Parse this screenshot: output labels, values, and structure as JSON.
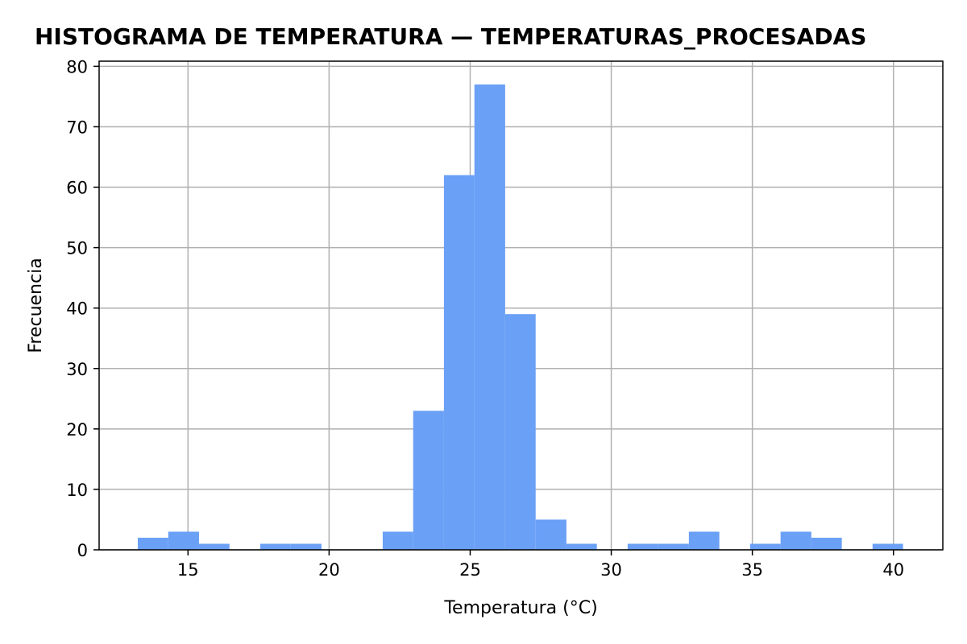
{
  "chart_data": {
    "type": "bar",
    "title": "HISTOGRAMA DE TEMPERATURA — TEMPERATURAS_PROCESADAS",
    "xlabel": "Temperatura (°C)",
    "ylabel": "Frecuencia",
    "xlim": [
      11.85,
      41.75
    ],
    "ylim": [
      0,
      80.85
    ],
    "xticks": [
      15,
      20,
      25,
      30,
      35,
      40
    ],
    "yticks": [
      0,
      10,
      20,
      30,
      40,
      50,
      60,
      70,
      80
    ],
    "grid": true,
    "bar_color": "#6aa0f6",
    "bins": [
      {
        "start": 13.22,
        "end": 14.3,
        "value": 2
      },
      {
        "start": 14.3,
        "end": 15.39,
        "value": 3
      },
      {
        "start": 15.39,
        "end": 16.47,
        "value": 1
      },
      {
        "start": 16.47,
        "end": 17.56,
        "value": 0
      },
      {
        "start": 17.56,
        "end": 18.64,
        "value": 1
      },
      {
        "start": 18.64,
        "end": 19.73,
        "value": 1
      },
      {
        "start": 19.73,
        "end": 20.81,
        "value": 0
      },
      {
        "start": 20.81,
        "end": 21.9,
        "value": 0
      },
      {
        "start": 21.9,
        "end": 22.98,
        "value": 3
      },
      {
        "start": 22.98,
        "end": 24.07,
        "value": 23
      },
      {
        "start": 24.07,
        "end": 25.15,
        "value": 62
      },
      {
        "start": 25.15,
        "end": 26.24,
        "value": 77
      },
      {
        "start": 26.24,
        "end": 27.32,
        "value": 39
      },
      {
        "start": 27.32,
        "end": 28.41,
        "value": 5
      },
      {
        "start": 28.41,
        "end": 29.49,
        "value": 1
      },
      {
        "start": 29.49,
        "end": 30.58,
        "value": 0
      },
      {
        "start": 30.58,
        "end": 31.66,
        "value": 1
      },
      {
        "start": 31.66,
        "end": 32.75,
        "value": 1
      },
      {
        "start": 32.75,
        "end": 33.83,
        "value": 3
      },
      {
        "start": 33.83,
        "end": 34.92,
        "value": 0
      },
      {
        "start": 34.92,
        "end": 36.0,
        "value": 1
      },
      {
        "start": 36.0,
        "end": 37.09,
        "value": 3
      },
      {
        "start": 37.09,
        "end": 38.17,
        "value": 2
      },
      {
        "start": 38.17,
        "end": 39.26,
        "value": 0
      },
      {
        "start": 39.26,
        "end": 40.34,
        "value": 1
      }
    ]
  }
}
